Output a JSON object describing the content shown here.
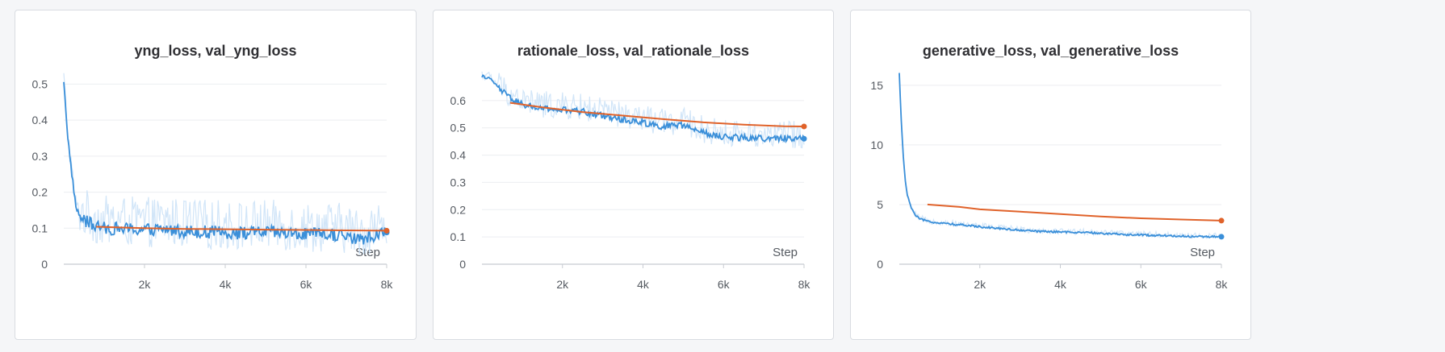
{
  "chart_data": [
    {
      "type": "line",
      "title": "yng_loss, val_yng_loss",
      "xlabel": "Step",
      "xlim": [
        0,
        8000
      ],
      "ylim": [
        0,
        0.53
      ],
      "x_ticks": [
        2000,
        4000,
        6000,
        8000
      ],
      "x_tick_labels": [
        "2k",
        "4k",
        "6k",
        "8k"
      ],
      "y_ticks": [
        0,
        0.1,
        0.2,
        0.3,
        0.4,
        0.5
      ],
      "y_tick_labels": [
        "0",
        "0.1",
        "0.2",
        "0.3",
        "0.4",
        "0.5"
      ],
      "grid": true,
      "colors": {
        "train": "#3a8fd9",
        "train_raw": "#c9e0f7",
        "val": "#e0622a"
      },
      "series": [
        {
          "role": "train",
          "x": [
            0,
            100,
            200,
            300,
            400,
            600,
            800,
            1000,
            1500,
            2000,
            2500,
            3000,
            3500,
            4000,
            4500,
            5000,
            5500,
            6000,
            6500,
            7000,
            7300,
            7600,
            8000
          ],
          "values": [
            0.51,
            0.35,
            0.25,
            0.16,
            0.13,
            0.115,
            0.105,
            0.1,
            0.098,
            0.095,
            0.097,
            0.092,
            0.09,
            0.088,
            0.086,
            0.09,
            0.085,
            0.083,
            0.082,
            0.08,
            0.065,
            0.078,
            0.088
          ],
          "noise": 0.018,
          "raw_noise": 0.07
        },
        {
          "role": "val",
          "x": [
            800,
            2000,
            3000,
            4000,
            5000,
            6000,
            7000,
            8000
          ],
          "values": [
            0.104,
            0.1,
            0.098,
            0.097,
            0.096,
            0.095,
            0.094,
            0.093
          ],
          "end_marker": true
        }
      ]
    },
    {
      "type": "line",
      "title": "rationale_loss, val_rationale_loss",
      "xlabel": "Step",
      "xlim": [
        0,
        8000
      ],
      "ylim": [
        0,
        0.7
      ],
      "x_ticks": [
        2000,
        4000,
        6000,
        8000
      ],
      "x_tick_labels": [
        "2k",
        "4k",
        "6k",
        "8k"
      ],
      "y_ticks": [
        0,
        0.1,
        0.2,
        0.3,
        0.4,
        0.5,
        0.6
      ],
      "y_tick_labels": [
        "0",
        "0.1",
        "0.2",
        "0.3",
        "0.4",
        "0.5",
        "0.6"
      ],
      "grid": true,
      "colors": {
        "train": "#3a8fd9",
        "train_raw": "#c9e0f7",
        "val": "#e0622a"
      },
      "series": [
        {
          "role": "train",
          "x": [
            0,
            200,
            400,
            600,
            800,
            1000,
            1500,
            2000,
            2500,
            3000,
            3500,
            4000,
            4500,
            5000,
            5500,
            6000,
            6500,
            7000,
            7500,
            8000
          ],
          "values": [
            0.69,
            0.68,
            0.65,
            0.62,
            0.6,
            0.585,
            0.57,
            0.565,
            0.56,
            0.545,
            0.53,
            0.52,
            0.505,
            0.51,
            0.48,
            0.465,
            0.465,
            0.46,
            0.462,
            0.46
          ],
          "noise": 0.012,
          "raw_noise": 0.05
        },
        {
          "role": "val",
          "x": [
            700,
            1500,
            2500,
            3500,
            4500,
            5500,
            6500,
            7500,
            8000
          ],
          "values": [
            0.592,
            0.575,
            0.558,
            0.545,
            0.532,
            0.52,
            0.512,
            0.506,
            0.505
          ],
          "end_marker": true
        }
      ]
    },
    {
      "type": "line",
      "title": "generative_loss, val_generative_loss",
      "xlabel": "Step",
      "xlim": [
        0,
        8000
      ],
      "ylim": [
        0,
        16
      ],
      "x_ticks": [
        2000,
        4000,
        6000,
        8000
      ],
      "x_tick_labels": [
        "2k",
        "4k",
        "6k",
        "8k"
      ],
      "y_ticks": [
        0,
        5,
        10,
        15
      ],
      "y_tick_labels": [
        "0",
        "5",
        "10",
        "15"
      ],
      "grid": true,
      "colors": {
        "train": "#3a8fd9",
        "train_raw": "#c9e0f7",
        "val": "#e0622a"
      },
      "series": [
        {
          "role": "train",
          "x": [
            0,
            50,
            100,
            150,
            200,
            300,
            400,
            500,
            700,
            1000,
            1500,
            2000,
            2500,
            3000,
            3500,
            4000,
            4500,
            5000,
            5500,
            6000,
            6500,
            7000,
            7500,
            8000
          ],
          "values": [
            16,
            12,
            9,
            7,
            5.8,
            4.7,
            4.1,
            3.8,
            3.6,
            3.45,
            3.3,
            3.15,
            3.0,
            2.85,
            2.75,
            2.7,
            2.65,
            2.6,
            2.5,
            2.45,
            2.4,
            2.35,
            2.3,
            2.3
          ],
          "noise": 0.08,
          "raw_noise": 0.25
        },
        {
          "role": "val",
          "x": [
            700,
            1500,
            2000,
            3000,
            4000,
            5000,
            6000,
            7000,
            8000
          ],
          "values": [
            5.0,
            4.8,
            4.6,
            4.4,
            4.2,
            4.0,
            3.85,
            3.75,
            3.65
          ],
          "end_marker": true
        }
      ]
    }
  ]
}
